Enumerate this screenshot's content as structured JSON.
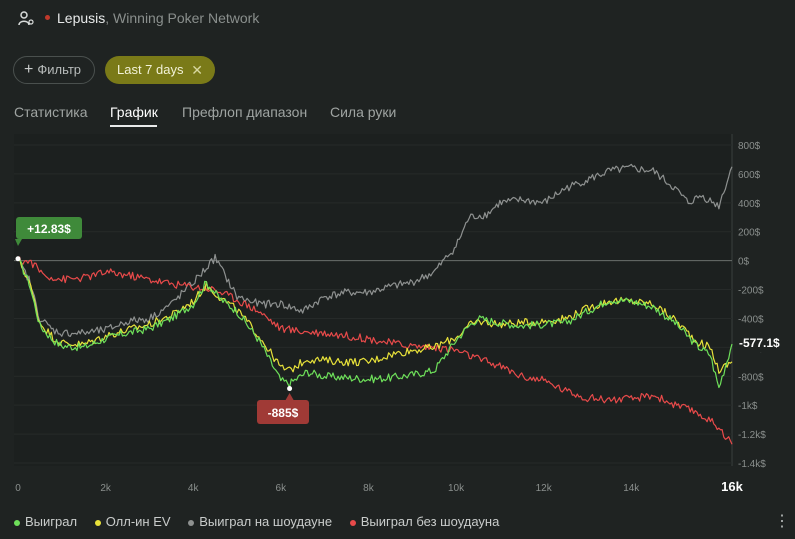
{
  "header": {
    "player_name": "Lepusis",
    "network": ", Winning Poker Network"
  },
  "toolbar": {
    "filter_label": "Фильтр",
    "chip_label": "Last 7 days"
  },
  "tabs": [
    {
      "label": "Статистика",
      "active": false
    },
    {
      "label": "График",
      "active": true
    },
    {
      "label": "Префлоп диапазон",
      "active": false
    },
    {
      "label": "Сила руки",
      "active": false
    }
  ],
  "colors": {
    "won": "#6ee05a",
    "allin_ev": "#e8e23a",
    "showdown": "#8e9190",
    "non_showdown": "#e84a4a",
    "start_badge": "#3f8a3a",
    "min_badge": "#a03a36"
  },
  "chart_data": {
    "type": "line",
    "xlabel": "",
    "ylabel": "",
    "xlim": [
      0,
      16300
    ],
    "ylim": [
      -1400,
      800
    ],
    "x_ticks": [
      {
        "value": 0,
        "label": "0"
      },
      {
        "value": 2000,
        "label": "2k"
      },
      {
        "value": 4000,
        "label": "4k"
      },
      {
        "value": 6000,
        "label": "6k"
      },
      {
        "value": 8000,
        "label": "8k"
      },
      {
        "value": 10000,
        "label": "10k"
      },
      {
        "value": 12000,
        "label": "12k"
      },
      {
        "value": 14000,
        "label": "14k"
      },
      {
        "value": 16300,
        "label": "16k",
        "emphasis": true
      }
    ],
    "y_ticks": [
      {
        "value": 800,
        "label": "800$"
      },
      {
        "value": 600,
        "label": "600$"
      },
      {
        "value": 400,
        "label": "400$"
      },
      {
        "value": 200,
        "label": "200$"
      },
      {
        "value": 0,
        "label": "0$"
      },
      {
        "value": -200,
        "label": "-200$"
      },
      {
        "value": -400,
        "label": "-400$"
      },
      {
        "value": -600,
        "label": "-600$"
      },
      {
        "value": -800,
        "label": "-800$"
      },
      {
        "value": -1000,
        "label": "-1k$"
      },
      {
        "value": -1200,
        "label": "-1.2k$"
      },
      {
        "value": -1400,
        "label": "-1.4k$"
      }
    ],
    "series": [
      {
        "name": "Выиграл",
        "color": "#6ee05a",
        "x": [
          0,
          250,
          500,
          800,
          1000,
          1500,
          2000,
          2500,
          3000,
          3500,
          4000,
          4300,
          4600,
          5000,
          5500,
          6000,
          6200,
          6600,
          7000,
          7500,
          8000,
          8500,
          9000,
          9500,
          10000,
          10300,
          10500,
          11000,
          11500,
          12000,
          12500,
          13000,
          13500,
          14000,
          14500,
          15000,
          15500,
          15800,
          16000,
          16300
        ],
        "y": [
          13,
          -150,
          -450,
          -550,
          -590,
          -600,
          -540,
          -500,
          -470,
          -400,
          -300,
          -150,
          -260,
          -350,
          -550,
          -830,
          -850,
          -770,
          -800,
          -810,
          -820,
          -810,
          -790,
          -760,
          -550,
          -450,
          -400,
          -430,
          -450,
          -440,
          -430,
          -350,
          -270,
          -280,
          -320,
          -430,
          -590,
          -650,
          -880,
          -577
        ]
      },
      {
        "name": "Олл-ин EV",
        "color": "#e8e23a",
        "x": [
          0,
          250,
          500,
          800,
          1000,
          1500,
          2000,
          2500,
          3000,
          3500,
          4000,
          4300,
          4600,
          5000,
          5500,
          6000,
          6200,
          6600,
          7000,
          7500,
          8000,
          8500,
          9000,
          9500,
          10000,
          10300,
          10500,
          11000,
          11500,
          12000,
          12500,
          13000,
          13500,
          14000,
          14500,
          15000,
          15500,
          15800,
          16000,
          16300
        ],
        "y": [
          13,
          -140,
          -430,
          -530,
          -570,
          -580,
          -520,
          -480,
          -440,
          -380,
          -280,
          -170,
          -250,
          -340,
          -520,
          -740,
          -760,
          -680,
          -690,
          -700,
          -700,
          -650,
          -620,
          -600,
          -530,
          -450,
          -420,
          -440,
          -430,
          -420,
          -400,
          -330,
          -280,
          -280,
          -300,
          -410,
          -560,
          -600,
          -760,
          -700
        ]
      },
      {
        "name": "Выиграл на шоудауне",
        "color": "#8e9190",
        "x": [
          0,
          250,
          500,
          800,
          1000,
          1500,
          2000,
          2500,
          3000,
          3500,
          4000,
          4300,
          4500,
          5000,
          5500,
          6000,
          6500,
          7000,
          7500,
          8000,
          8500,
          9000,
          9500,
          10000,
          10300,
          10700,
          11000,
          11500,
          12000,
          12500,
          13000,
          13500,
          14000,
          14500,
          15000,
          15300,
          15600,
          16000,
          16300
        ],
        "y": [
          0,
          -130,
          -400,
          -480,
          -500,
          -500,
          -480,
          -420,
          -400,
          -300,
          -150,
          -50,
          20,
          -250,
          -300,
          -300,
          -350,
          -250,
          -220,
          -220,
          -180,
          -150,
          -80,
          100,
          300,
          320,
          400,
          420,
          400,
          500,
          560,
          620,
          640,
          620,
          500,
          400,
          450,
          380,
          650
        ]
      },
      {
        "name": "Выиграл без шоудауна",
        "color": "#e84a4a",
        "x": [
          0,
          300,
          600,
          1000,
          1500,
          2000,
          2500,
          3000,
          3500,
          4000,
          4500,
          5000,
          5500,
          6000,
          6500,
          7000,
          7500,
          8000,
          8500,
          9000,
          9500,
          10000,
          10500,
          11000,
          11500,
          12000,
          12500,
          13000,
          13500,
          14000,
          14500,
          15000,
          15500,
          16000,
          16300
        ],
        "y": [
          0,
          -10,
          -100,
          -130,
          -120,
          -80,
          -100,
          -130,
          -160,
          -180,
          -200,
          -270,
          -350,
          -470,
          -490,
          -500,
          -520,
          -540,
          -570,
          -590,
          -600,
          -620,
          -680,
          -730,
          -800,
          -830,
          -900,
          -950,
          -960,
          -960,
          -930,
          -1000,
          -1050,
          -1150,
          -1270
        ]
      }
    ],
    "annotations": [
      {
        "label": "+12.83$",
        "x": 0,
        "y": 13,
        "style": "start"
      },
      {
        "label": "-885$",
        "x": 6200,
        "y": -885,
        "style": "min"
      },
      {
        "label": "-577.1$",
        "x": 16300,
        "y": -577,
        "style": "end"
      }
    ],
    "legend": {
      "position": "bottom-left"
    },
    "grid": true
  },
  "legend_items": [
    {
      "label": "Выиграл",
      "color": "#6ee05a"
    },
    {
      "label": "Олл-ин EV",
      "color": "#e8e23a"
    },
    {
      "label": "Выиграл на шоудауне",
      "color": "#8e9190"
    },
    {
      "label": "Выиграл без шоудауна",
      "color": "#e84a4a"
    }
  ]
}
